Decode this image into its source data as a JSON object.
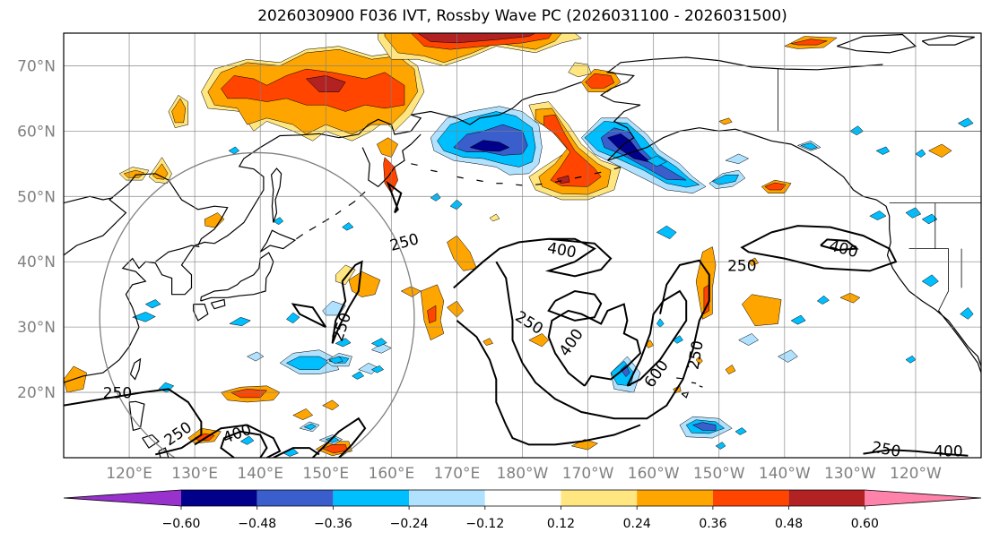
{
  "chart_data": {
    "type": "heatmap",
    "title": "2026030900 F036 IVT, Rossby Wave PC (2026031100 - 2026031500)",
    "lat_range": [
      10,
      75
    ],
    "lon_range": [
      110,
      250
    ],
    "lat_ticks": [
      20,
      30,
      40,
      50,
      60,
      70
    ],
    "lat_tick_labels": [
      "20°N",
      "30°N",
      "40°N",
      "50°N",
      "60°N",
      "70°N"
    ],
    "lon_ticks": [
      120,
      130,
      140,
      150,
      160,
      170,
      180,
      190,
      200,
      210,
      220,
      230,
      240
    ],
    "lon_tick_labels": [
      "120°E",
      "130°E",
      "140°E",
      "150°E",
      "160°E",
      "170°E",
      "180°W",
      "170°W",
      "160°W",
      "150°W",
      "140°W",
      "130°W",
      "120°W"
    ],
    "grid": true,
    "colorbar": {
      "orientation": "horizontal",
      "extend": "both",
      "levels": [
        -0.6,
        -0.48,
        -0.36,
        -0.24,
        -0.12,
        0.12,
        0.24,
        0.36,
        0.48,
        0.6
      ],
      "tick_labels": [
        "−0.60",
        "−0.48",
        "−0.36",
        "−0.24",
        "−0.12",
        "0.12",
        "0.24",
        "0.36",
        "0.48",
        "0.60"
      ],
      "colors": [
        "#9932cc",
        "#00008b",
        "#3a5fcd",
        "#00bfff",
        "#b0e2ff",
        "#ffffff",
        "#ffe680",
        "#ffa500",
        "#ff4500",
        "#b22222",
        "#ff82ab"
      ]
    },
    "contour_labels": [
      {
        "value": "250",
        "lat": 42.9,
        "lon": 162,
        "rotation": -15
      },
      {
        "value": "250",
        "lat": 30.0,
        "lon": 152.5,
        "rotation": -72
      },
      {
        "value": "250",
        "lat": 19.8,
        "lon": 118.2,
        "rotation": 0
      },
      {
        "value": "250",
        "lat": 13.6,
        "lon": 127.5,
        "rotation": -35
      },
      {
        "value": "400",
        "lat": 13.6,
        "lon": 136.5,
        "rotation": -20
      },
      {
        "value": "400",
        "lat": 41.7,
        "lon": 186,
        "rotation": 10
      },
      {
        "value": "250",
        "lat": 30.6,
        "lon": 181,
        "rotation": 32
      },
      {
        "value": "400",
        "lat": 27.6,
        "lon": 187.5,
        "rotation": -55
      },
      {
        "value": "600",
        "lat": 22.8,
        "lon": 200.5,
        "rotation": -55
      },
      {
        "value": "250",
        "lat": 25.7,
        "lon": 206.5,
        "rotation": -80
      },
      {
        "value": "250",
        "lat": 39.3,
        "lon": 213.5,
        "rotation": 0
      },
      {
        "value": "400",
        "lat": 41.9,
        "lon": 229,
        "rotation": 15
      },
      {
        "value": "250",
        "lat": 11.2,
        "lon": 235.5,
        "rotation": 10
      },
      {
        "value": "400",
        "lat": 10.9,
        "lon": 245,
        "rotation": 0
      }
    ],
    "contour_lines": [
      [
        [
          169.5,
          36
        ],
        [
          174,
          40
        ],
        [
          176.5,
          42
        ],
        [
          179.5,
          43
        ],
        [
          184,
          43.5
        ],
        [
          188,
          43.5
        ],
        [
          191,
          42
        ],
        [
          188,
          40
        ],
        [
          184,
          38.6
        ],
        [
          188,
          37.8
        ],
        [
          192,
          38.8
        ],
        [
          193.5,
          40.5
        ],
        [
          191,
          42.8
        ],
        [
          184,
          43.5
        ]
      ],
      [
        [
          185,
          34
        ],
        [
          188,
          35.5
        ],
        [
          191,
          35
        ],
        [
          192,
          33.6
        ],
        [
          191,
          31.5
        ],
        [
          188,
          31
        ],
        [
          184,
          32.5
        ],
        [
          185,
          34
        ]
      ],
      [
        [
          189.5,
          21
        ],
        [
          187,
          23
        ],
        [
          185,
          26
        ],
        [
          184,
          28.5
        ],
        [
          184.5,
          31
        ],
        [
          187,
          32.5
        ],
        [
          189,
          32
        ],
        [
          192,
          30.5
        ],
        [
          193,
          32.5
        ],
        [
          195.5,
          33.5
        ],
        [
          196,
          31
        ],
        [
          195.5,
          29
        ],
        [
          197.5,
          28
        ],
        [
          198,
          26
        ],
        [
          196,
          24
        ],
        [
          193.5,
          22
        ],
        [
          190.5,
          22.5
        ],
        [
          189.5,
          21
        ]
      ],
      [
        [
          196,
          21
        ],
        [
          198,
          25
        ],
        [
          199.5,
          29
        ],
        [
          200,
          32
        ],
        [
          201.5,
          34
        ],
        [
          204,
          35.5
        ],
        [
          205,
          34
        ],
        [
          205,
          31
        ],
        [
          203,
          28
        ],
        [
          201,
          25
        ],
        [
          198,
          22
        ],
        [
          196,
          21
        ]
      ],
      [
        [
          201,
          32
        ],
        [
          202,
          36.5
        ],
        [
          204,
          39.5
        ],
        [
          207,
          40.2
        ],
        [
          208.5,
          38
        ],
        [
          208.5,
          34
        ],
        [
          207,
          31
        ],
        [
          206,
          26.5
        ],
        [
          204.5,
          22
        ],
        [
          202,
          18
        ],
        [
          199,
          16
        ],
        [
          194,
          16
        ],
        [
          189,
          17
        ],
        [
          185,
          19
        ],
        [
          182,
          21.5
        ],
        [
          180,
          24.5
        ],
        [
          178.5,
          28
        ],
        [
          178.5,
          31
        ],
        [
          178,
          34
        ],
        [
          177.5,
          37.5
        ],
        [
          176,
          40
        ]
      ],
      [
        [
          170,
          31
        ],
        [
          173,
          28.5
        ],
        [
          175,
          25
        ],
        [
          176,
          22
        ],
        [
          176,
          18.5
        ],
        [
          177.5,
          15
        ],
        [
          178.5,
          13
        ],
        [
          181,
          12
        ],
        [
          185,
          12
        ],
        [
          189,
          12.5
        ],
        [
          194,
          13.5
        ],
        [
          198,
          15
        ]
      ],
      [
        [
          218,
          44.5
        ],
        [
          222,
          45.5
        ],
        [
          227,
          45.3
        ],
        [
          232,
          44
        ],
        [
          236,
          42
        ],
        [
          237,
          40
        ],
        [
          233,
          38.6
        ],
        [
          226,
          39
        ],
        [
          220,
          40.5
        ],
        [
          214.5,
          41.5
        ],
        [
          213.5,
          42.2
        ],
        [
          218,
          44.5
        ]
      ],
      [
        [
          225.5,
          42.5
        ],
        [
          228,
          41.8
        ],
        [
          231,
          42
        ],
        [
          229.5,
          43.2
        ],
        [
          226.5,
          43.4
        ],
        [
          225.5,
          42.5
        ]
      ],
      [
        [
          152.5,
          37
        ],
        [
          154.5,
          39.5
        ],
        [
          155.5,
          40
        ],
        [
          155,
          35.5
        ],
        [
          153.5,
          33
        ],
        [
          152,
          30
        ],
        [
          151,
          27.5
        ],
        [
          151.5,
          31
        ],
        [
          153,
          34
        ],
        [
          152.5,
          37
        ]
      ],
      [
        [
          150,
          30
        ],
        [
          148,
          33
        ],
        [
          145,
          33.5
        ],
        [
          146,
          32
        ],
        [
          150,
          30
        ]
      ],
      [
        [
          160.5,
          47.5
        ],
        [
          161.5,
          50.5
        ],
        [
          159.5,
          52
        ],
        [
          161,
          48
        ],
        [
          160.5,
          47.5
        ]
      ],
      [
        [
          110,
          18
        ],
        [
          116,
          19
        ],
        [
          122,
          20
        ],
        [
          126,
          20.5
        ],
        [
          129,
          18.5
        ],
        [
          131,
          15.5
        ],
        [
          131,
          13.5
        ],
        [
          128,
          11.5
        ],
        [
          124,
          10.5
        ]
      ],
      [
        [
          130,
          12
        ],
        [
          134,
          14.5
        ],
        [
          138,
          15
        ],
        [
          142,
          13
        ],
        [
          143,
          11
        ],
        [
          141,
          10
        ]
      ],
      [
        [
          136,
          10
        ],
        [
          134,
          11.5
        ],
        [
          134.5,
          13
        ],
        [
          137,
          14
        ],
        [
          140,
          13.5
        ],
        [
          141,
          11.5
        ],
        [
          140,
          10
        ]
      ],
      [
        [
          148,
          10
        ],
        [
          150,
          12
        ],
        [
          152,
          14
        ],
        [
          155,
          16
        ],
        [
          156,
          14.5
        ],
        [
          154,
          12
        ],
        [
          152,
          10
        ]
      ],
      [
        [
          142,
          10
        ],
        [
          145,
          11.5
        ],
        [
          147.5,
          11.5
        ],
        [
          149,
          10.5
        ]
      ],
      [
        [
          232,
          10.6
        ],
        [
          236,
          11.2
        ],
        [
          240,
          11
        ],
        [
          244,
          10.6
        ],
        [
          248,
          10.3
        ]
      ]
    ],
    "circle": {
      "center_lon": 139.5,
      "center_lat": 31.5,
      "radius_deg": 30,
      "color": "#808080"
    }
  }
}
